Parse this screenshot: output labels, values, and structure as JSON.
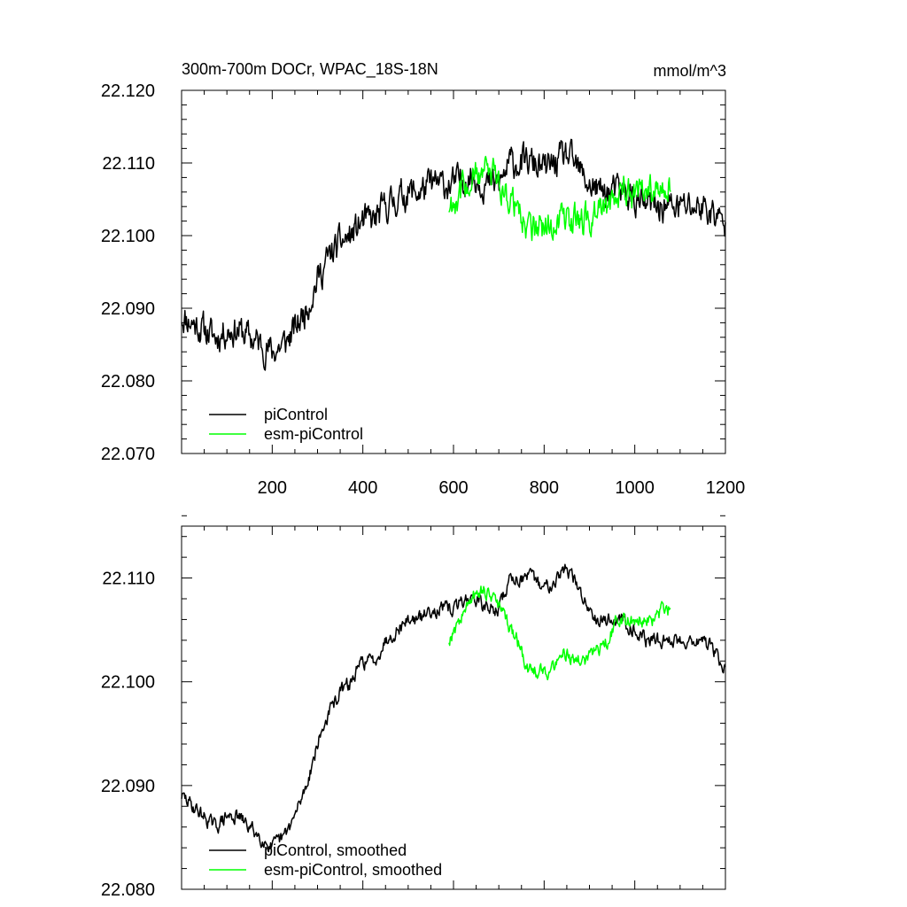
{
  "chart_data": [
    {
      "type": "line",
      "title": "300m-700m DOCr, WPAC_18S-18N",
      "units": "mmol/m^3",
      "xlim": [
        0,
        1200
      ],
      "ylim": [
        22.07,
        22.12
      ],
      "xticks": [
        200,
        400,
        600,
        800,
        1000,
        1200
      ],
      "xtick_labels": [
        "200",
        "400",
        "600",
        "800",
        "1000",
        "1200"
      ],
      "yticks": [
        22.07,
        22.08,
        22.09,
        22.1,
        22.11,
        22.12
      ],
      "ytick_labels": [
        "22.070",
        "22.080",
        "22.090",
        "22.100",
        "22.110",
        "22.120"
      ],
      "legend_position": "bottom-left",
      "grid": false,
      "series": [
        {
          "name": "piControl",
          "color": "#000000",
          "x": [
            0,
            25,
            50,
            75,
            100,
            125,
            150,
            175,
            200,
            225,
            250,
            275,
            300,
            325,
            350,
            375,
            400,
            425,
            450,
            475,
            500,
            525,
            550,
            575,
            600,
            625,
            650,
            675,
            700,
            725,
            750,
            775,
            800,
            825,
            850,
            875,
            900,
            925,
            950,
            975,
            1000,
            1025,
            1050,
            1075,
            1100,
            1125,
            1150,
            1175,
            1200
          ],
          "y": [
            22.089,
            22.088,
            22.087,
            22.086,
            22.087,
            22.087,
            22.086,
            22.085,
            22.084,
            22.085,
            22.087,
            22.09,
            22.094,
            22.097,
            22.099,
            22.1,
            22.102,
            22.102,
            22.104,
            22.105,
            22.106,
            22.106,
            22.107,
            22.107,
            22.107,
            22.108,
            22.108,
            22.107,
            22.107,
            22.11,
            22.11,
            22.11,
            22.109,
            22.11,
            22.111,
            22.109,
            22.107,
            22.106,
            22.106,
            22.106,
            22.105,
            22.104,
            22.104,
            22.104,
            22.104,
            22.104,
            22.104,
            22.103,
            22.101
          ],
          "noise_amplitude": 0.0022
        },
        {
          "name": "esm-piControl",
          "color": "#00ff00",
          "x": [
            590,
            615,
            640,
            665,
            690,
            715,
            740,
            765,
            790,
            815,
            840,
            865,
            890,
            915,
            940,
            965,
            990,
            1015,
            1040,
            1065,
            1080
          ],
          "y": [
            22.104,
            22.106,
            22.108,
            22.109,
            22.108,
            22.106,
            22.104,
            22.101,
            22.101,
            22.101,
            22.103,
            22.102,
            22.102,
            22.103,
            22.104,
            22.106,
            22.106,
            22.106,
            22.106,
            22.107,
            22.107
          ],
          "noise_amplitude": 0.0022
        }
      ]
    },
    {
      "type": "line",
      "title": "",
      "xlim": [
        0,
        1200
      ],
      "ylim": [
        22.08,
        22.115
      ],
      "xticks": [
        200,
        400,
        600,
        800,
        1000,
        1200
      ],
      "yticks": [
        22.08,
        22.09,
        22.1,
        22.11
      ],
      "ytick_labels": [
        "22.080",
        "22.090",
        "22.100",
        "22.110"
      ],
      "legend_position": "bottom-left",
      "grid": false,
      "series": [
        {
          "name": "piControl, smoothed",
          "color": "#000000",
          "x": [
            0,
            25,
            50,
            75,
            100,
            125,
            150,
            175,
            200,
            225,
            250,
            275,
            300,
            325,
            350,
            375,
            400,
            425,
            450,
            475,
            500,
            525,
            550,
            575,
            600,
            625,
            650,
            675,
            700,
            725,
            750,
            775,
            800,
            825,
            850,
            875,
            900,
            925,
            950,
            975,
            1000,
            1025,
            1050,
            1075,
            1100,
            1125,
            1150,
            1175,
            1200
          ],
          "y": [
            22.089,
            22.088,
            22.087,
            22.086,
            22.087,
            22.087,
            22.086,
            22.085,
            22.084,
            22.085,
            22.087,
            22.09,
            22.094,
            22.097,
            22.099,
            22.1,
            22.102,
            22.102,
            22.104,
            22.105,
            22.106,
            22.106,
            22.107,
            22.107,
            22.107,
            22.108,
            22.108,
            22.107,
            22.107,
            22.11,
            22.11,
            22.11,
            22.109,
            22.11,
            22.111,
            22.109,
            22.107,
            22.106,
            22.106,
            22.106,
            22.105,
            22.104,
            22.104,
            22.104,
            22.104,
            22.104,
            22.104,
            22.103,
            22.101
          ],
          "noise_amplitude": 0.0007
        },
        {
          "name": "esm-piControl, smoothed",
          "color": "#00ff00",
          "x": [
            590,
            615,
            640,
            665,
            690,
            715,
            740,
            765,
            790,
            815,
            840,
            865,
            890,
            915,
            940,
            965,
            990,
            1015,
            1040,
            1065,
            1080
          ],
          "y": [
            22.104,
            22.106,
            22.108,
            22.109,
            22.108,
            22.106,
            22.104,
            22.101,
            22.101,
            22.101,
            22.103,
            22.102,
            22.102,
            22.103,
            22.104,
            22.106,
            22.106,
            22.106,
            22.106,
            22.107,
            22.107
          ],
          "noise_amplitude": 0.0007
        }
      ]
    }
  ]
}
